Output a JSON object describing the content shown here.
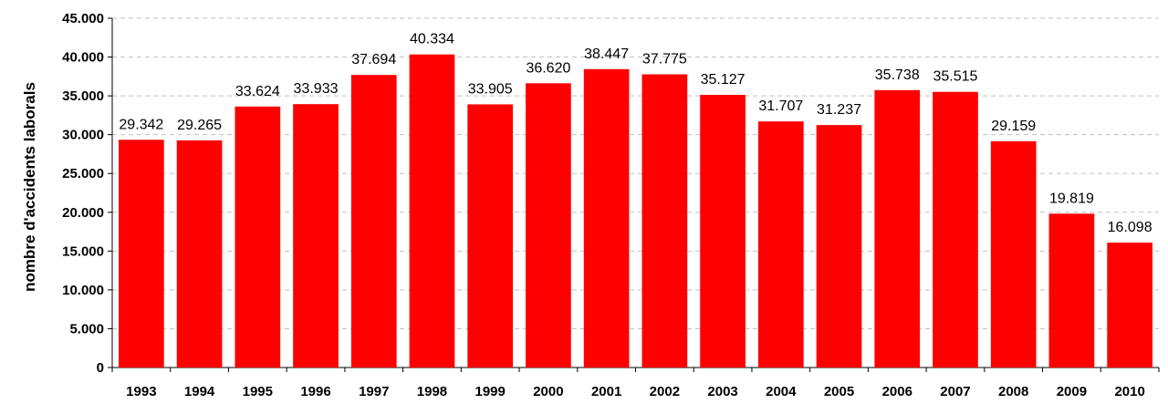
{
  "chart_data": {
    "type": "bar",
    "title": "",
    "xlabel": "",
    "ylabel": "nombre d'accidents laborals",
    "categories": [
      "1993",
      "1994",
      "1995",
      "1996",
      "1997",
      "1998",
      "1999",
      "2000",
      "2001",
      "2002",
      "2003",
      "2004",
      "2005",
      "2006",
      "2007",
      "2008",
      "2009",
      "2010"
    ],
    "values": [
      29342,
      29265,
      33624,
      33933,
      37694,
      40334,
      33905,
      36620,
      38447,
      37775,
      35127,
      31707,
      31237,
      35738,
      35515,
      29159,
      19819,
      16098
    ],
    "value_labels": [
      "29.342",
      "29.265",
      "33.624",
      "33.933",
      "37.694",
      "40.334",
      "33.905",
      "36.620",
      "38.447",
      "37.775",
      "35.127",
      "31.707",
      "31.237",
      "35.738",
      "35.515",
      "29.159",
      "19.819",
      "16.098"
    ],
    "ylim": [
      0,
      45000
    ],
    "yticks": [
      0,
      5000,
      10000,
      15000,
      20000,
      25000,
      30000,
      35000,
      40000,
      45000
    ],
    "ytick_labels": [
      "0",
      "5.000",
      "10.000",
      "15.000",
      "20.000",
      "25.000",
      "30.000",
      "35.000",
      "40.000",
      "45.000"
    ],
    "grid": true,
    "legend": "none",
    "bar_color": "#ff0000",
    "grid_color": "#c0c0c0"
  }
}
